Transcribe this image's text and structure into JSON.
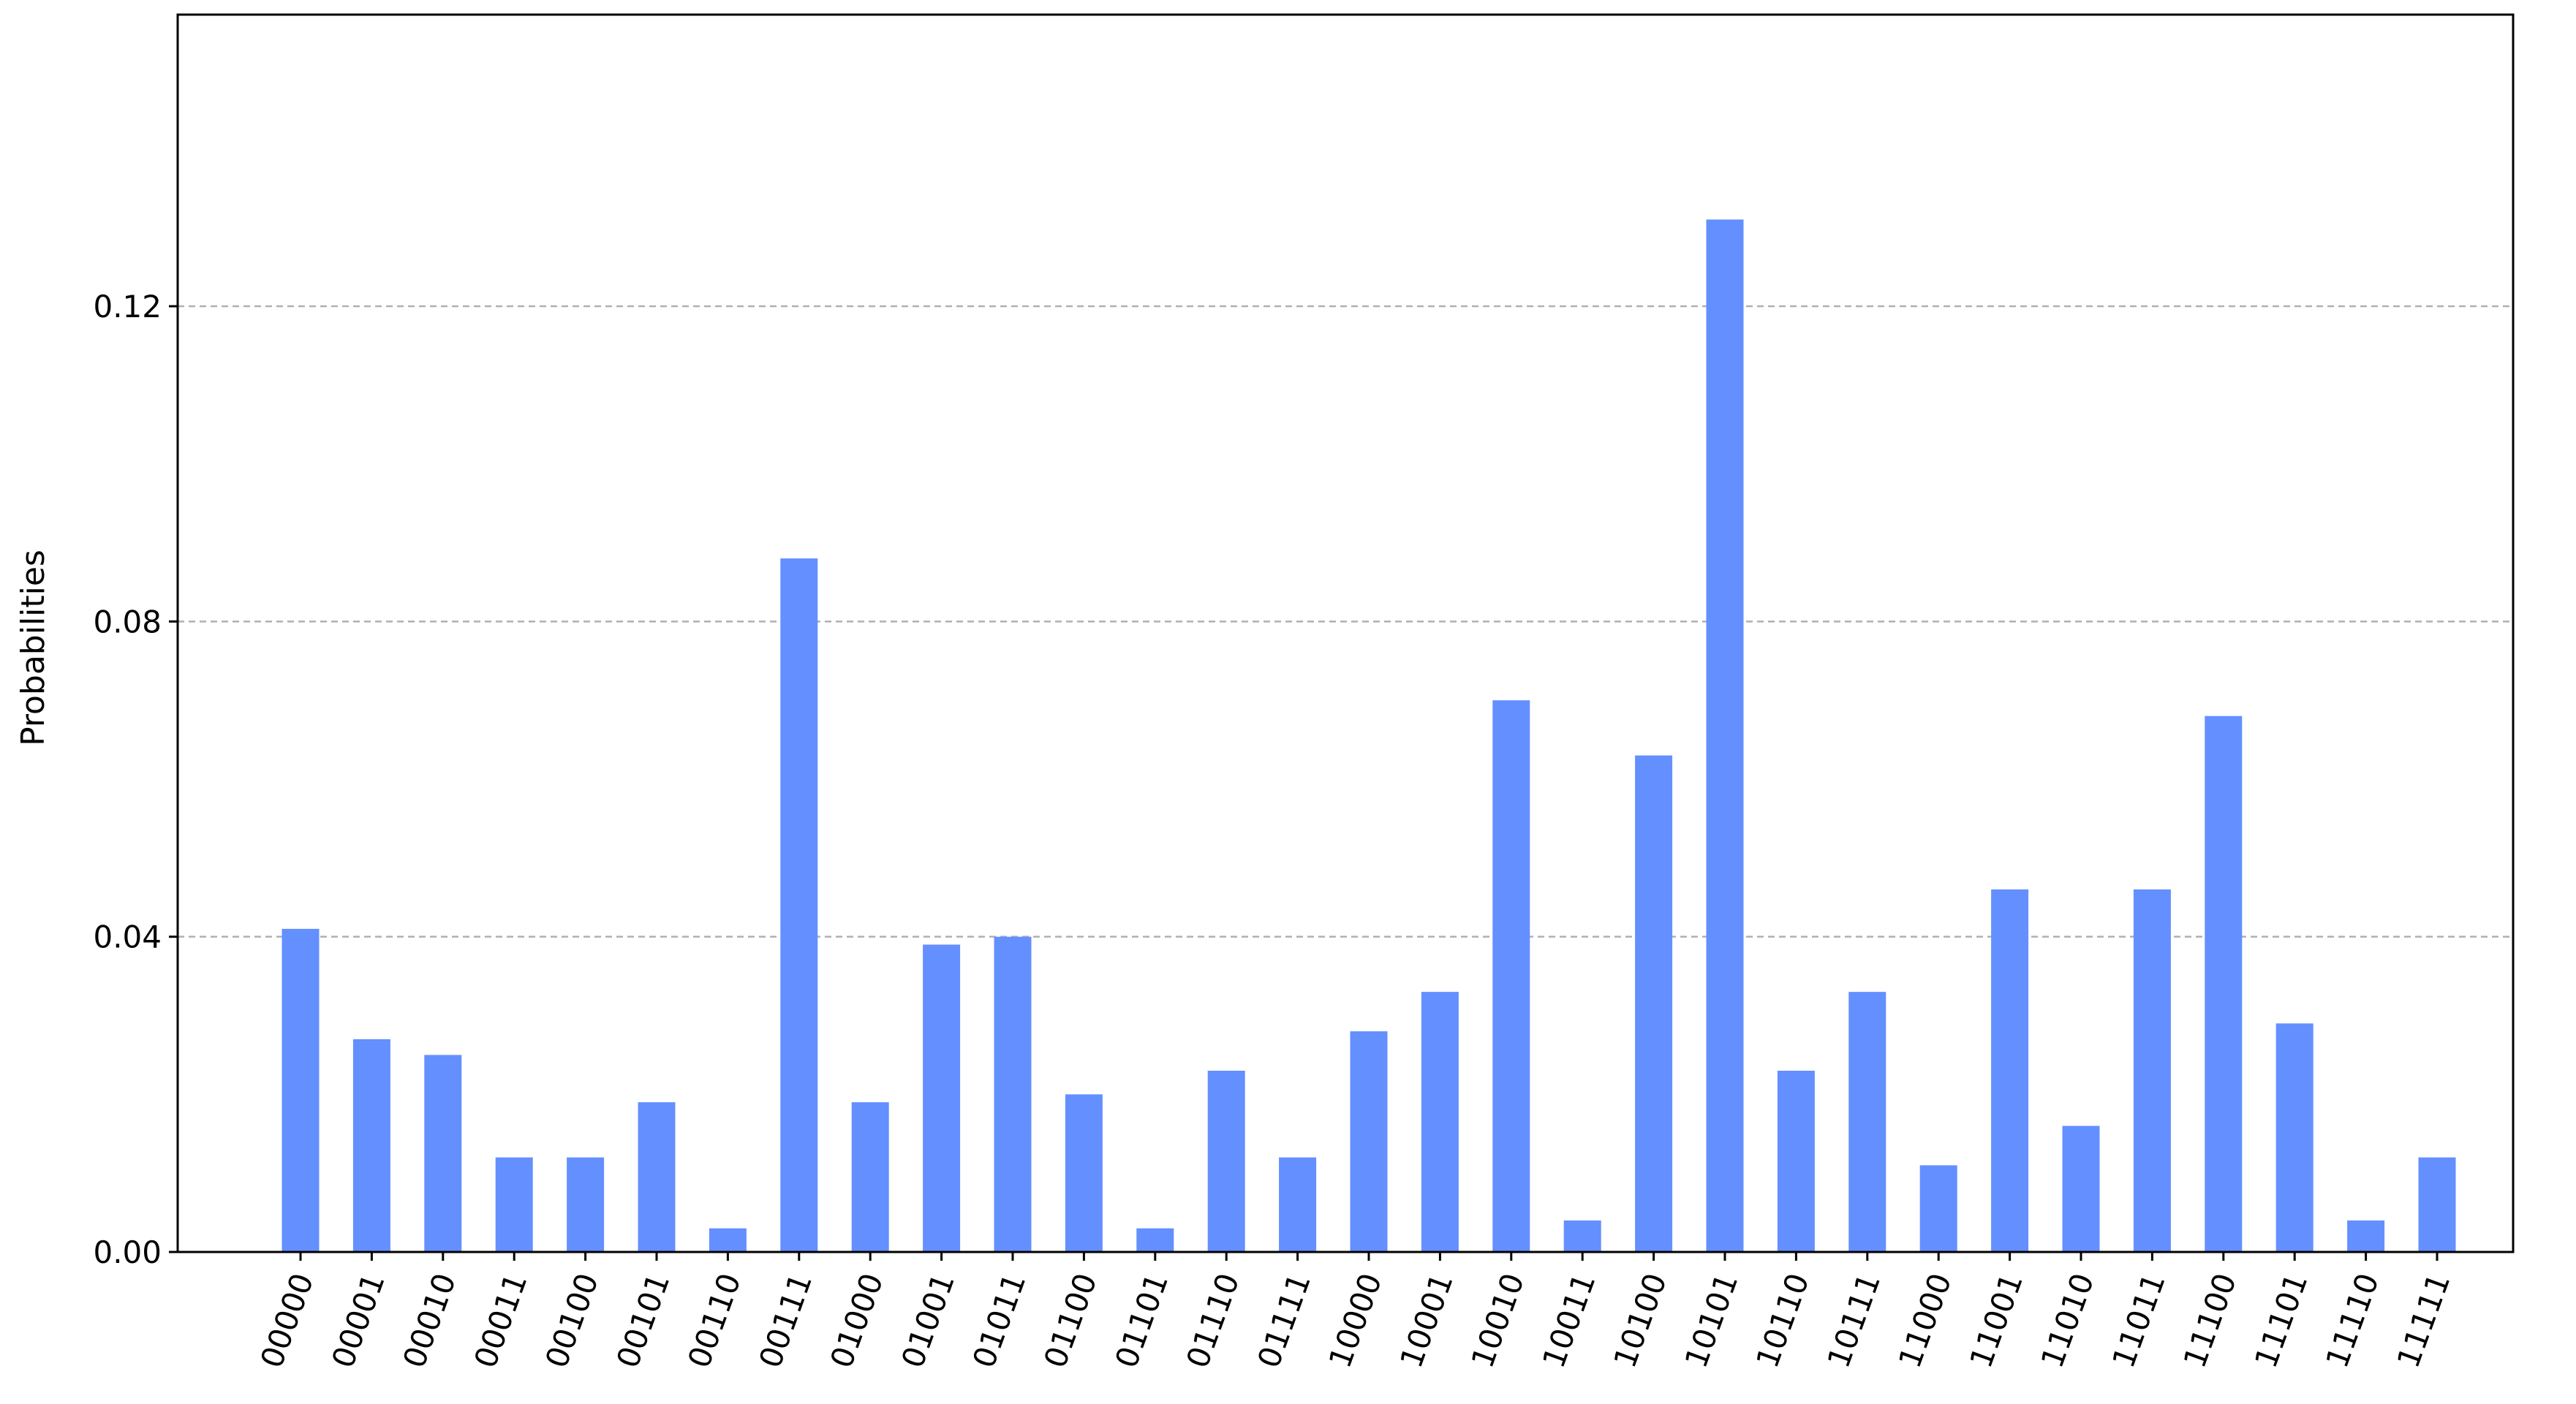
{
  "chart_data": {
    "type": "bar",
    "title": "",
    "xlabel": "",
    "ylabel": "Probabilities",
    "categories": [
      "00000",
      "00001",
      "00010",
      "00011",
      "00100",
      "00101",
      "00110",
      "00111",
      "01000",
      "01001",
      "01011",
      "01100",
      "01101",
      "01110",
      "01111",
      "10000",
      "10001",
      "10010",
      "10011",
      "10100",
      "10101",
      "10110",
      "10111",
      "11000",
      "11001",
      "11010",
      "11011",
      "11100",
      "11101",
      "11110",
      "11111"
    ],
    "values": [
      0.041,
      0.027,
      0.025,
      0.012,
      0.012,
      0.019,
      0.003,
      0.088,
      0.019,
      0.039,
      0.04,
      0.02,
      0.003,
      0.023,
      0.012,
      0.028,
      0.033,
      0.07,
      0.004,
      0.063,
      0.131,
      0.023,
      0.033,
      0.011,
      0.046,
      0.016,
      0.046,
      0.068,
      0.029,
      0.004,
      0.012
    ],
    "ylim": [
      0,
      0.157
    ],
    "yticks": [
      0.0,
      0.04,
      0.08,
      0.12
    ],
    "ytick_labels": [
      "0.00",
      "0.04",
      "0.08",
      "0.12"
    ],
    "grid": "horizontal dashed",
    "legend": "none",
    "bar_color": "#648fff",
    "grid_color": "#b0b0b0"
  }
}
